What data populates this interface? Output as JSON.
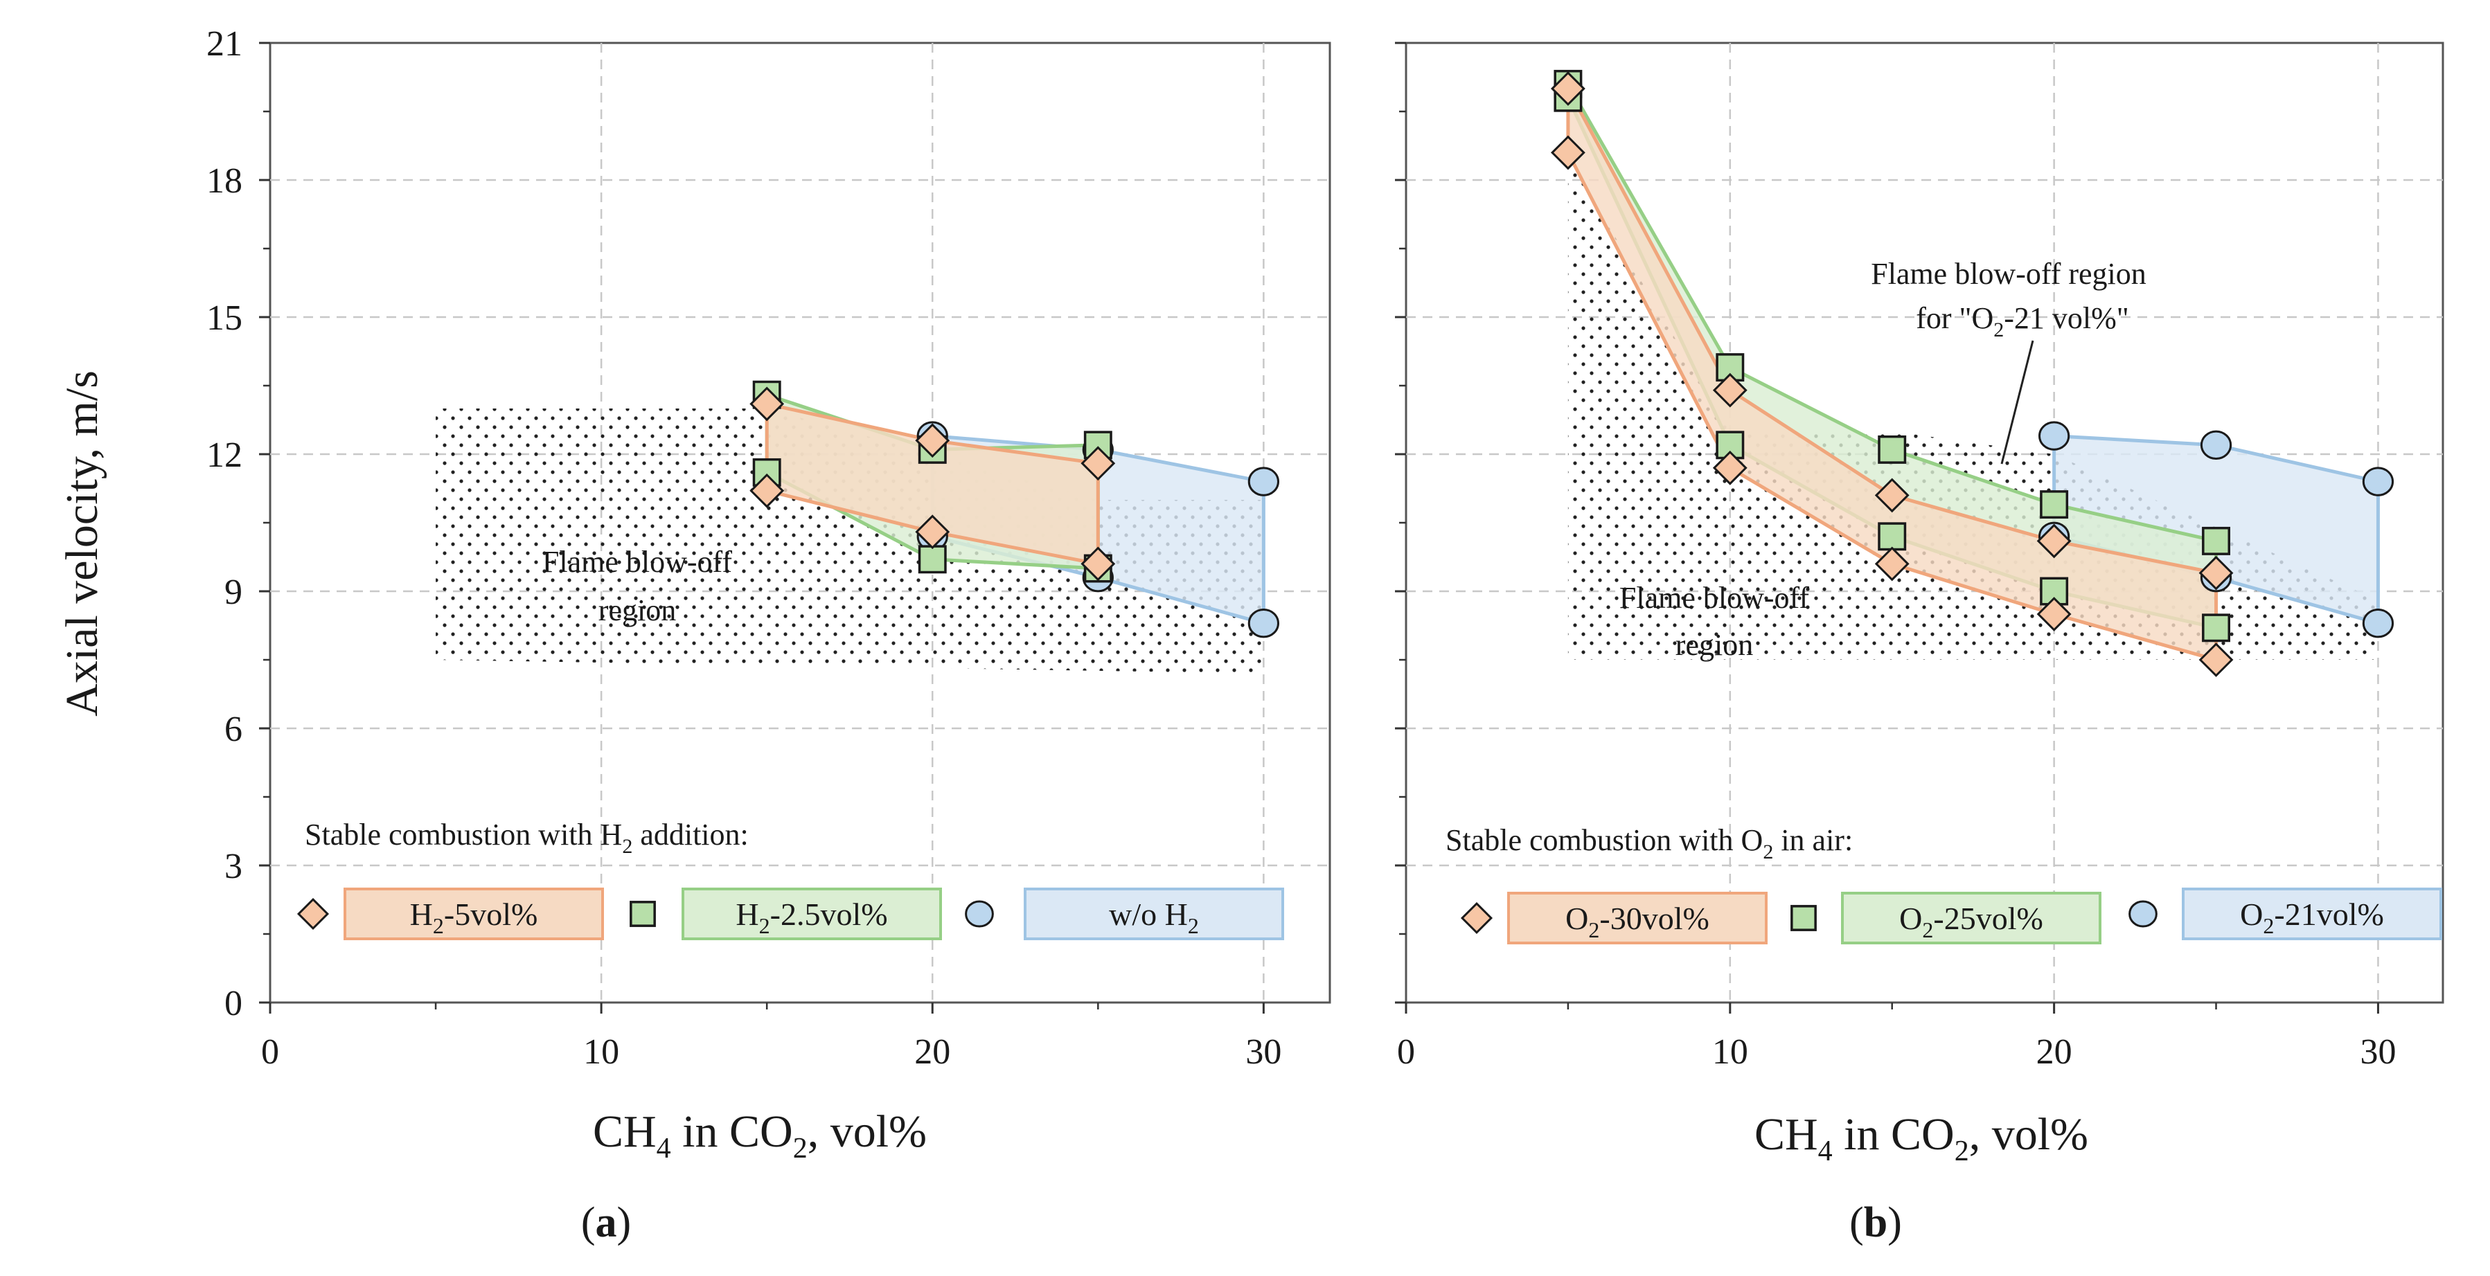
{
  "chart_data": [
    {
      "panel": "a",
      "type": "area",
      "xlabel": "CH4 in CO2, vol%",
      "ylabel": "Axial velocity, m/s",
      "xlim": [
        0,
        32
      ],
      "ylim": [
        0,
        21
      ],
      "xticks": [
        0,
        10,
        20,
        30
      ],
      "yticks": [
        0,
        3,
        6,
        9,
        12,
        15,
        18,
        21
      ],
      "grid": true,
      "legend_title": "Stable combustion with H2 addition:",
      "legend_position": "bottom-left",
      "annotations": [
        {
          "text": [
            "Flame blow-off",
            "region"
          ]
        }
      ],
      "blowoff_region": {
        "x": [
          5,
          15,
          25,
          30,
          30,
          5
        ],
        "y": [
          13,
          13,
          11,
          11,
          7.2,
          7.5
        ]
      },
      "series": [
        {
          "name": "w/o H2",
          "label_main": "w/o H",
          "label_sub": "2",
          "label_post": "",
          "marker": "circle",
          "x": [
            20,
            25,
            30
          ],
          "upper": [
            12.4,
            12.1,
            11.4
          ],
          "lower": [
            10.2,
            9.3,
            8.3
          ],
          "fill": "#dbe8f5",
          "stroke": "#9ec4e4",
          "marker_fill": "#bcd7ee"
        },
        {
          "name": "H2-2.5vol%",
          "label_main": "H",
          "label_sub": "2",
          "label_post": "-2.5vol%",
          "marker": "square",
          "x": [
            15,
            20,
            25
          ],
          "upper": [
            13.3,
            12.1,
            12.2
          ],
          "lower": [
            11.6,
            9.7,
            9.5
          ],
          "fill": "#dbeed3",
          "stroke": "#96cf86",
          "marker_fill": "#b7dfa9"
        },
        {
          "name": "H2-5vol%",
          "label_main": "H",
          "label_sub": "2",
          "label_post": "-5vol%",
          "marker": "diamond",
          "x": [
            15,
            20,
            25
          ],
          "upper": [
            13.1,
            12.3,
            11.8
          ],
          "lower": [
            11.2,
            10.3,
            9.6
          ],
          "fill": "#f6dac3",
          "stroke": "#f0a67c",
          "marker_fill": "#f7c6a5"
        }
      ]
    },
    {
      "panel": "b",
      "type": "area",
      "xlabel": "CH4 in CO2, vol%",
      "xlim": [
        0,
        32
      ],
      "ylim": [
        0,
        21
      ],
      "xticks": [
        0,
        10,
        20,
        30
      ],
      "yticks": [
        0,
        3,
        6,
        9,
        12,
        15,
        18,
        21
      ],
      "grid": true,
      "legend_title": "Stable combustion with O2 in air:",
      "legend_position": "bottom-left",
      "annotations": [
        {
          "text": [
            "Flame blow-off",
            "region"
          ]
        },
        {
          "text": [
            "Flame blow-off region",
            "for \"O2-21 vol%\""
          ]
        }
      ],
      "blowoff_region": {
        "x": [
          5,
          10,
          15,
          20,
          30,
          30,
          5
        ],
        "y": [
          18.5,
          12.5,
          12.5,
          12,
          8.8,
          7.5,
          7.5
        ]
      },
      "series": [
        {
          "name": "O2-21vol%",
          "label_main": "O",
          "label_sub": "2",
          "label_post": "-21vol%",
          "marker": "circle",
          "x": [
            20,
            25,
            30
          ],
          "upper": [
            12.4,
            12.2,
            11.4
          ],
          "lower": [
            10.2,
            9.3,
            8.3
          ],
          "fill": "#dbe8f5",
          "stroke": "#9ec4e4",
          "marker_fill": "#bcd7ee"
        },
        {
          "name": "O2-25vol%",
          "label_main": "O",
          "label_sub": "2",
          "label_post": "-25vol%",
          "marker": "square",
          "x": [
            5,
            10,
            15,
            20,
            25
          ],
          "upper": [
            20.1,
            13.9,
            12.1,
            10.9,
            10.1
          ],
          "lower": [
            19.8,
            12.2,
            10.2,
            9.0,
            8.2
          ],
          "fill": "#dbeed3",
          "stroke": "#96cf86",
          "marker_fill": "#b7dfa9"
        },
        {
          "name": "O2-30vol%",
          "label_main": "O",
          "label_sub": "2",
          "label_post": "-30vol%",
          "marker": "diamond",
          "x": [
            5,
            10,
            15,
            20,
            25
          ],
          "upper": [
            20.0,
            13.4,
            11.1,
            10.1,
            9.4
          ],
          "lower": [
            18.6,
            11.7,
            9.6,
            8.5,
            7.5
          ],
          "fill": "#f6dac3",
          "stroke": "#f0a67c",
          "marker_fill": "#f7c6a5"
        }
      ]
    }
  ],
  "panel_labels": [
    "a",
    "b"
  ],
  "xlabel_parts": {
    "main": "CH",
    "sub1": "4",
    "mid": " in CO",
    "sub2": "2",
    "end": ", vol%"
  },
  "legend_title_parts": [
    {
      "pre": "Stable combustion with H",
      "sub": "2",
      "post": " addition:"
    },
    {
      "pre": "Stable combustion with O",
      "sub": "2",
      "post": " in air:"
    }
  ],
  "annotation_b2_parts": {
    "line1": "Flame blow-off region",
    "pre": "for \"O",
    "sub": "2",
    "post": "-21 vol%\""
  }
}
